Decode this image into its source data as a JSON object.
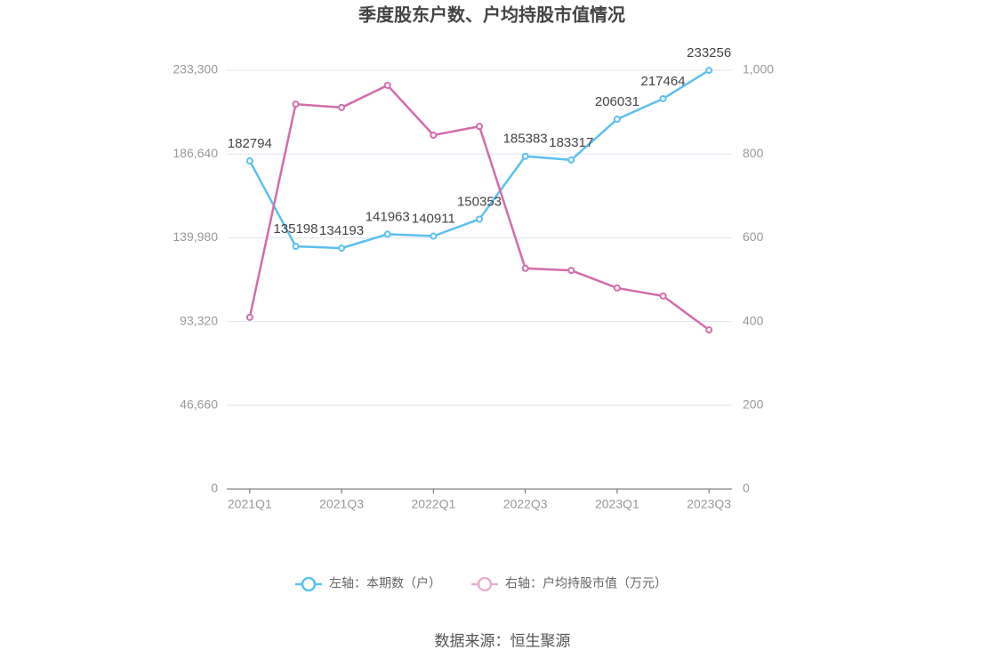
{
  "chart_data": {
    "type": "line",
    "title": "季度股东户数、户均持股市值情况",
    "categories": [
      "2021Q1",
      null,
      "2021Q3",
      null,
      "2022Q1",
      null,
      "2022Q3",
      null,
      "2023Q1",
      null,
      "2023Q3"
    ],
    "series": [
      {
        "name": "左轴：本期数（户）",
        "color": "#5bc0f0",
        "axis": "y",
        "values": [
          182794,
          135198,
          134193,
          141963,
          140911,
          150353,
          185383,
          183317,
          206031,
          217464,
          233256
        ]
      },
      {
        "name": "右轴：户均持股市值（万元）",
        "color": "#d36cab",
        "axis": "y2",
        "values": [
          410,
          919,
          911,
          964,
          845,
          866,
          527,
          522,
          480,
          461,
          380
        ]
      }
    ],
    "ylim": [
      0,
      233300
    ],
    "yticks": [
      0,
      {
        "value": 46660,
        "label": "46,660"
      },
      {
        "value": 93320,
        "label": "93,320"
      },
      {
        "value": 139980,
        "label": "139,980"
      },
      {
        "value": 186640,
        "label": "186,640"
      },
      {
        "value": 233300,
        "label": "233,300"
      }
    ],
    "y2lim": [
      0,
      1000
    ],
    "y2ticks": [
      0,
      200,
      400,
      600,
      800,
      {
        "value": 1000,
        "label": "1,000"
      }
    ],
    "grid": true,
    "legend": "bottom",
    "source": "数据来源：恒生聚源"
  }
}
